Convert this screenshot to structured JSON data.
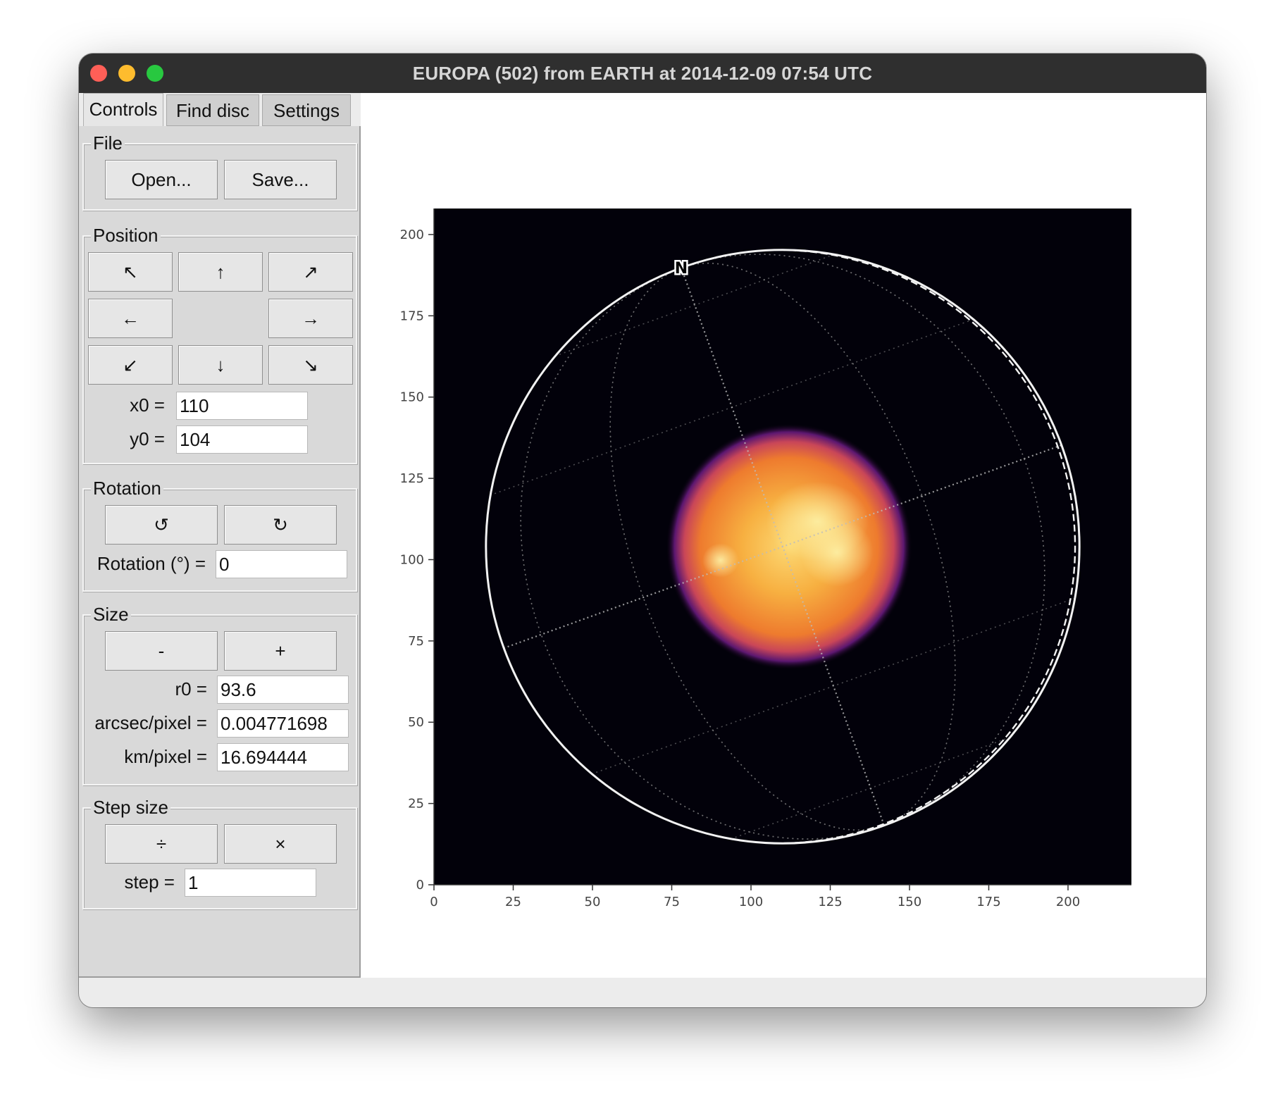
{
  "window": {
    "title": "EUROPA (502) from EARTH at 2014-12-09 07:54 UTC"
  },
  "tabs": [
    {
      "label": "Controls",
      "active": true
    },
    {
      "label": "Find disc",
      "active": false
    },
    {
      "label": "Settings",
      "active": false
    }
  ],
  "file": {
    "label": "File",
    "open_label": "Open...",
    "save_label": "Save..."
  },
  "position": {
    "label": "Position",
    "arrows": {
      "up_left": "↖",
      "up": "↑",
      "up_right": "↗",
      "left": "←",
      "right": "→",
      "down_left": "↙",
      "down": "↓",
      "down_right": "↘"
    },
    "x0_label": "x0 =",
    "x0_value": "110",
    "y0_label": "y0 =",
    "y0_value": "104"
  },
  "rotation": {
    "label": "Rotation",
    "ccw_label": "↺",
    "cw_label": "↻",
    "field_label": "Rotation (°) =",
    "value": "0"
  },
  "size": {
    "label": "Size",
    "minus_label": "-",
    "plus_label": "+",
    "r0_label": "r0 =",
    "r0_value": "93.6",
    "arcsec_label": "arcsec/pixel =",
    "arcsec_value": "0.004771698",
    "km_label": "km/pixel =",
    "km_value": "16.694444"
  },
  "step": {
    "label": "Step size",
    "divide_label": "÷",
    "multiply_label": "×",
    "field_label": "step =",
    "value": "1"
  },
  "plot": {
    "north_marker": "N",
    "colormap": [
      "#000004",
      "#420a68",
      "#932667",
      "#dd513a",
      "#fca50a",
      "#fcffa4"
    ],
    "axes": {
      "xlim": [
        0,
        220
      ],
      "ylim": [
        0,
        208
      ],
      "xticks": [
        0,
        25,
        50,
        75,
        100,
        125,
        150,
        175,
        200
      ],
      "yticks": [
        0,
        25,
        50,
        75,
        100,
        125,
        150,
        175,
        200
      ]
    },
    "disc": {
      "x0": 110,
      "y0": 104,
      "r0": 93.6
    },
    "planet": {
      "center_x": 112,
      "center_y": 104,
      "radius": 36
    }
  }
}
